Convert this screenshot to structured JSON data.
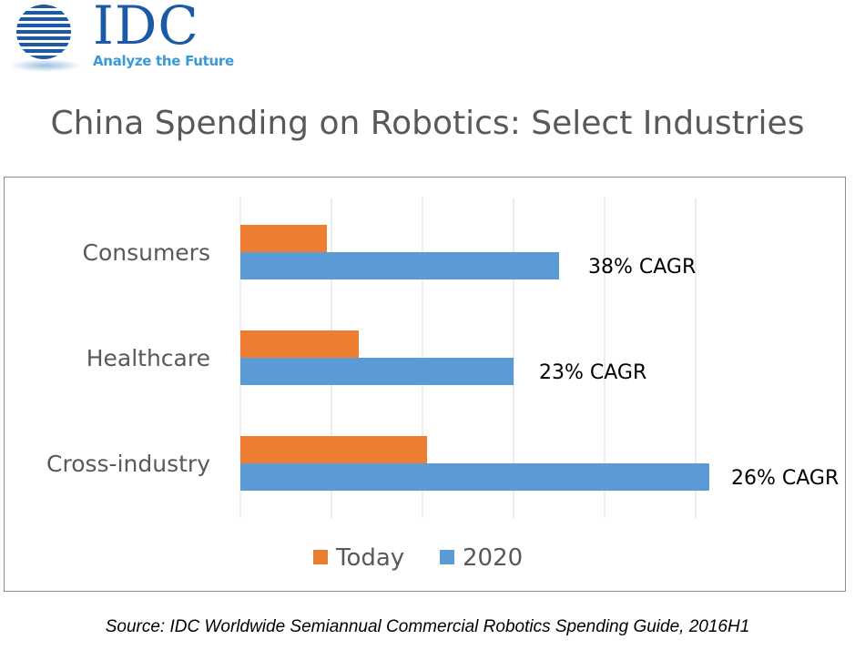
{
  "logo": {
    "name": "IDC",
    "tagline": "Analyze the Future",
    "colors": {
      "primary": "#1a5aa6",
      "accent": "#3a9ad9"
    }
  },
  "title": "China Spending on Robotics: Select Industries",
  "source": "Source: IDC Worldwide Semiannual Commercial Robotics Spending Guide, 2016H1",
  "chart_data": {
    "type": "bar",
    "orientation": "horizontal",
    "categories": [
      "Consumers",
      "Healthcare",
      "Cross-industry"
    ],
    "series": [
      {
        "name": "Today",
        "color": "#ed7d31",
        "values": [
          0.95,
          1.3,
          2.05
        ]
      },
      {
        "name": "2020",
        "color": "#5b9bd5",
        "values": [
          3.5,
          3.0,
          5.15
        ]
      }
    ],
    "annotations": [
      "38% CAGR",
      "23% CAGR",
      "26% CAGR"
    ],
    "xlim": [
      0,
      5.2
    ],
    "gridlines": [
      0,
      1,
      2,
      3,
      4,
      5
    ],
    "grid": true,
    "axis_tick_labels_shown": false,
    "legend": "bottom",
    "xlabel": "",
    "ylabel": ""
  }
}
